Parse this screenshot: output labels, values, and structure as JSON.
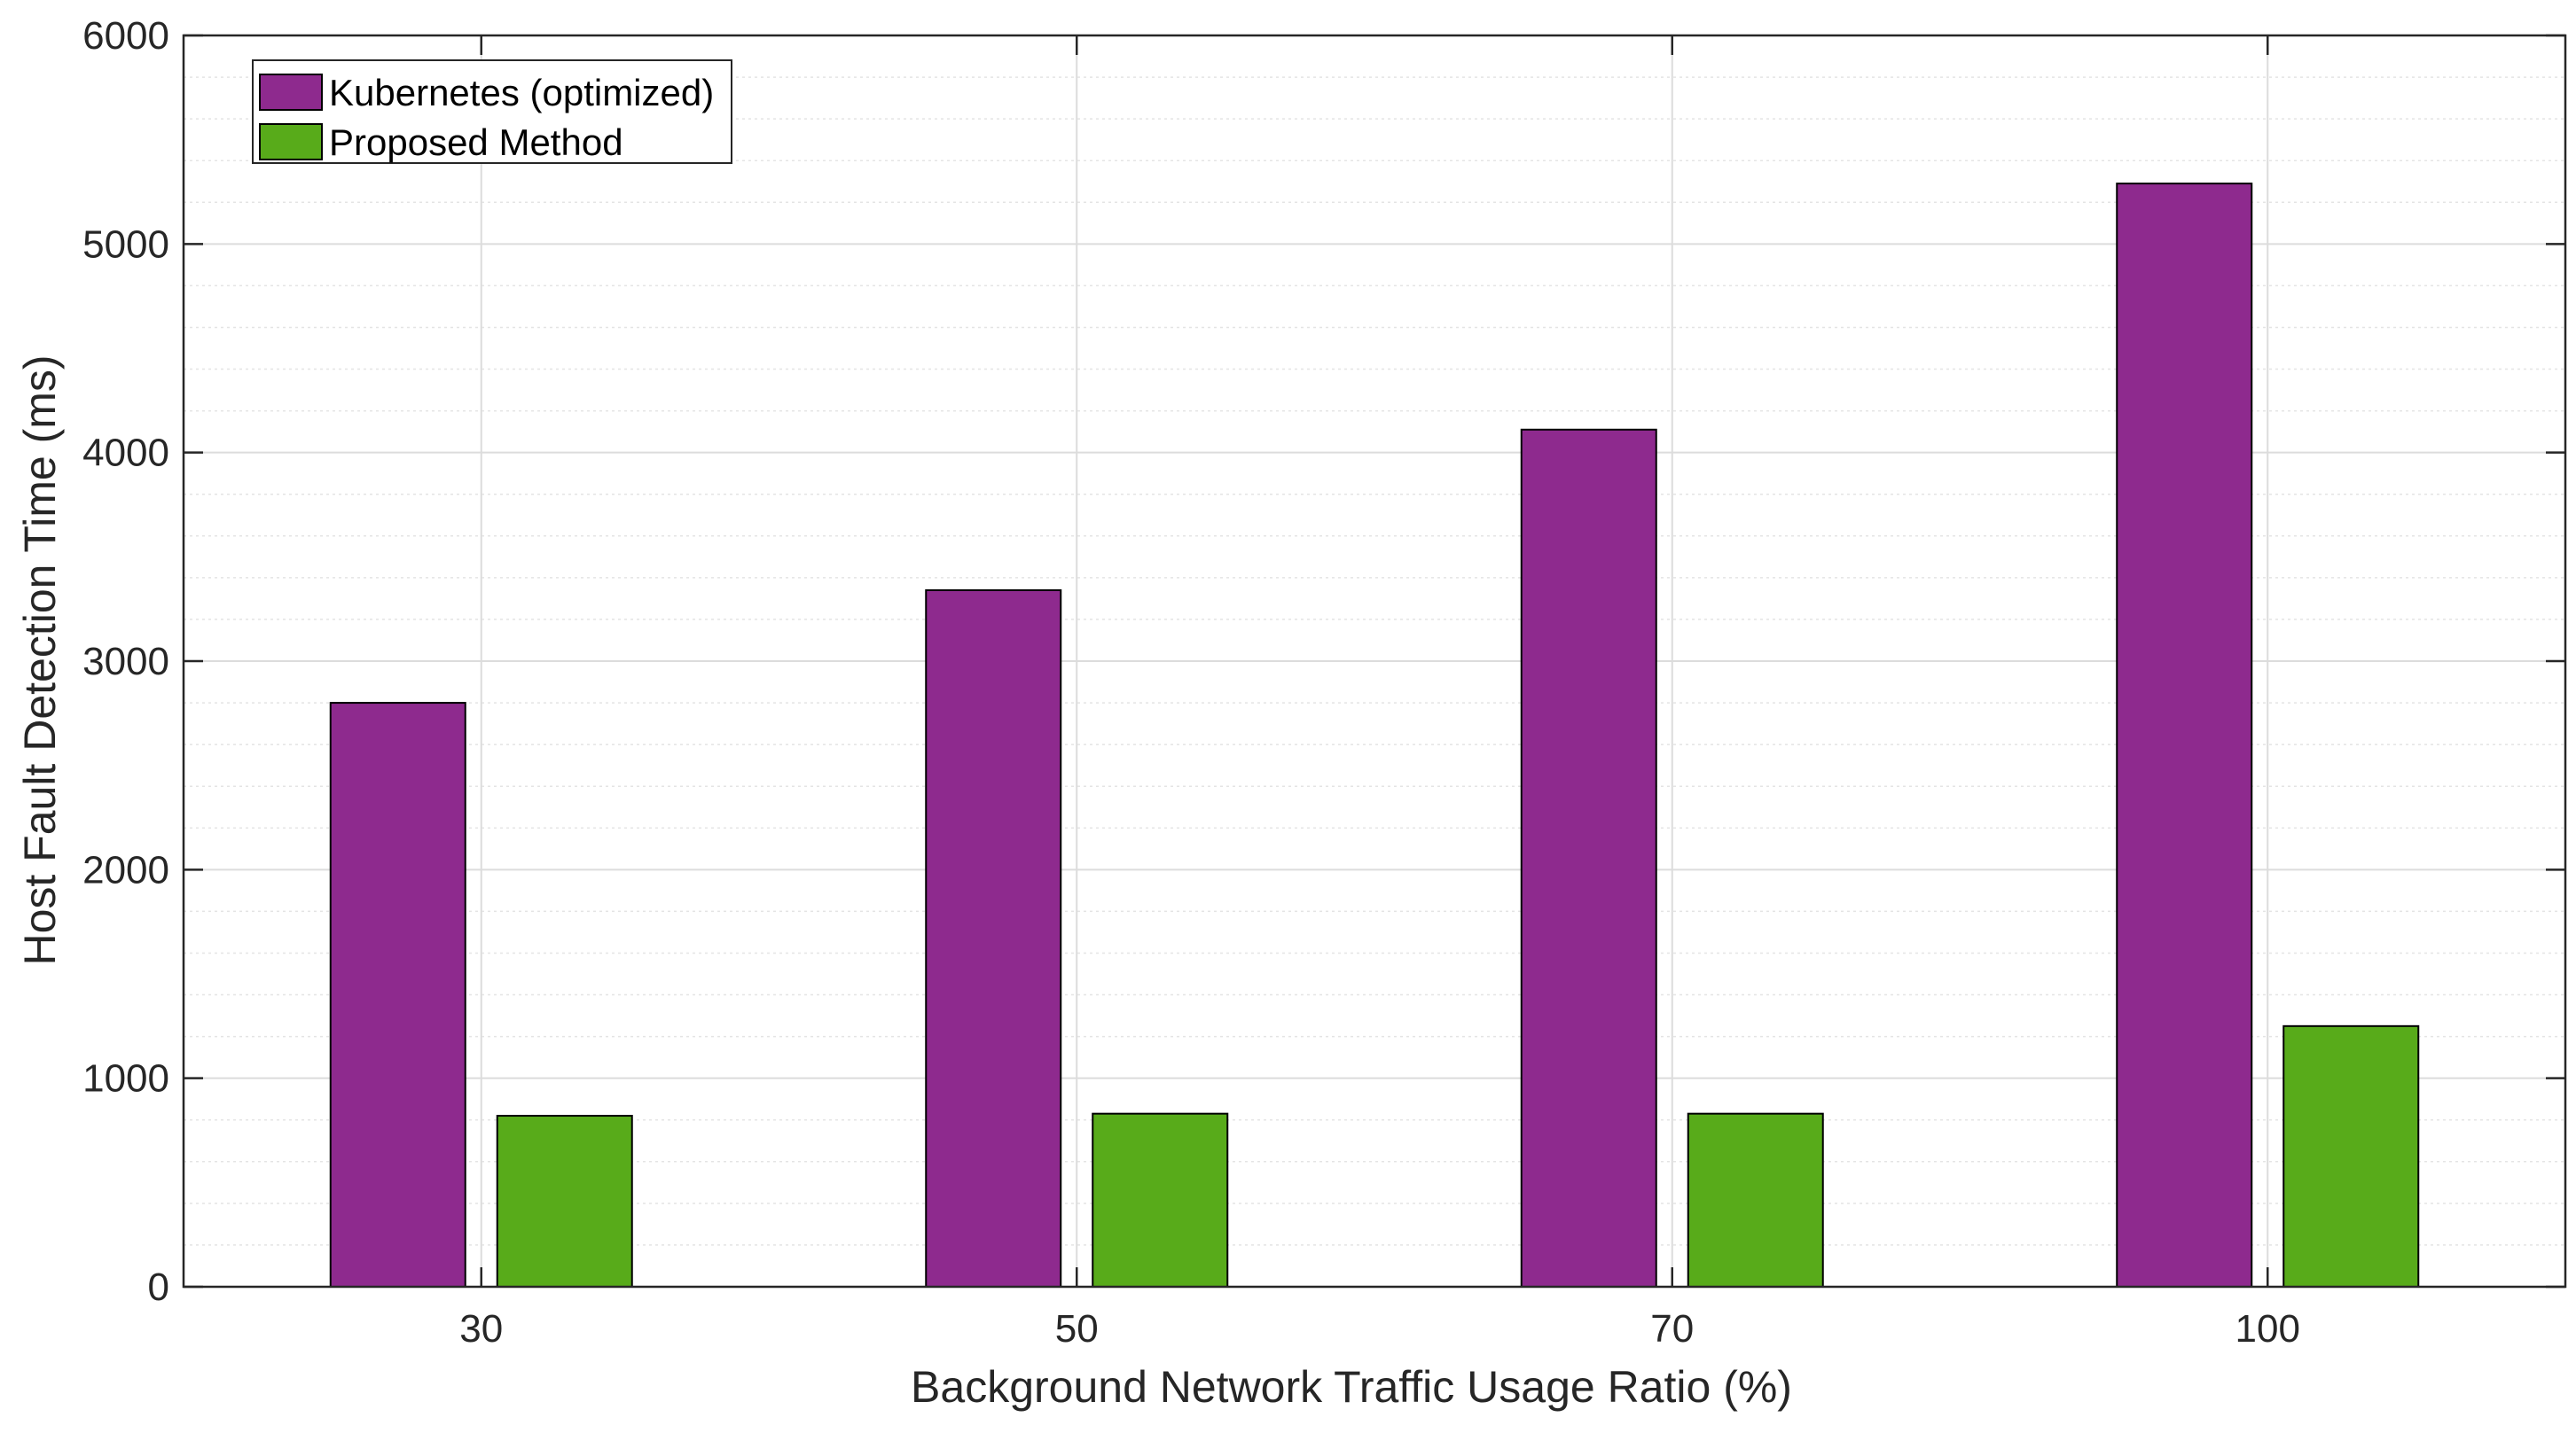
{
  "chart_data": {
    "type": "bar",
    "categories": [
      "30",
      "50",
      "70",
      "100"
    ],
    "series": [
      {
        "name": "Kubernetes (optimized)",
        "values": [
          2800,
          3340,
          4110,
          5290
        ],
        "color": "#8e2a8e"
      },
      {
        "name": "Proposed Method",
        "values": [
          820,
          830,
          830,
          1250
        ],
        "color": "#58ab1a"
      }
    ],
    "xlabel": "Background Network Traffic Usage Ratio (%)",
    "ylabel": "Host Fault Detection Time (ms)",
    "ylim": [
      0,
      6000
    ],
    "yticks": [
      0,
      1000,
      2000,
      3000,
      4000,
      5000,
      6000
    ],
    "grid": true,
    "minor_grid": true,
    "legend_position": "top-left"
  }
}
